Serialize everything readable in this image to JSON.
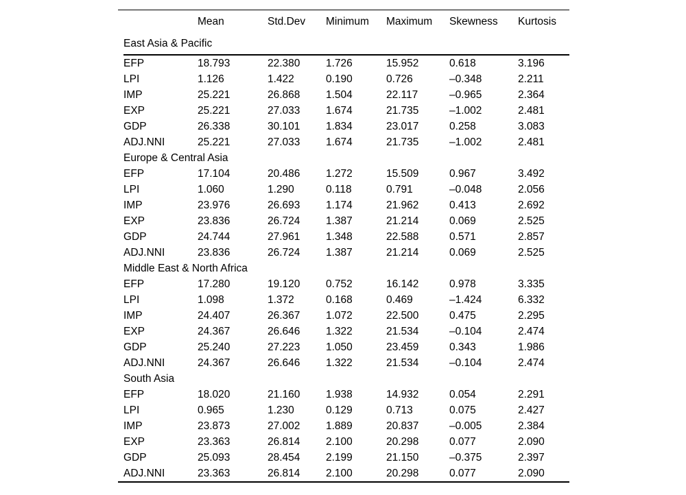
{
  "table": {
    "columns": [
      "",
      "Mean",
      "Std.Dev",
      "Minimum",
      "Maximum",
      "Skewness",
      "Kurtosis"
    ],
    "sections": [
      {
        "label": "East Asia & Pacific",
        "rows": [
          [
            "EFP",
            "18.793",
            "22.380",
            "1.726",
            "15.952",
            "0.618",
            "3.196"
          ],
          [
            "LPI",
            "1.126",
            "1.422",
            "0.190",
            "0.726",
            "–0.348",
            "2.211"
          ],
          [
            "IMP",
            "25.221",
            "26.868",
            "1.504",
            "22.117",
            "–0.965",
            "2.364"
          ],
          [
            "EXP",
            "25.221",
            "27.033",
            "1.674",
            "21.735",
            "–1.002",
            "2.481"
          ],
          [
            "GDP",
            "26.338",
            "30.101",
            "1.834",
            "23.017",
            "0.258",
            "3.083"
          ],
          [
            "ADJ.NNI",
            "25.221",
            "27.033",
            "1.674",
            "21.735",
            "–1.002",
            "2.481"
          ]
        ]
      },
      {
        "label": "Europe & Central Asia",
        "rows": [
          [
            "EFP",
            "17.104",
            "20.486",
            "1.272",
            "15.509",
            "0.967",
            "3.492"
          ],
          [
            "LPI",
            "1.060",
            "1.290",
            "0.118",
            "0.791",
            "–0.048",
            "2.056"
          ],
          [
            "IMP",
            "23.976",
            "26.693",
            "1.174",
            "21.962",
            "0.413",
            "2.692"
          ],
          [
            "EXP",
            "23.836",
            "26.724",
            "1.387",
            "21.214",
            "0.069",
            "2.525"
          ],
          [
            "GDP",
            "24.744",
            "27.961",
            "1.348",
            "22.588",
            "0.571",
            "2.857"
          ],
          [
            "ADJ.NNI",
            "23.836",
            "26.724",
            "1.387",
            "21.214",
            "0.069",
            "2.525"
          ]
        ]
      },
      {
        "label": "Middle East & North Africa",
        "rows": [
          [
            "EFP",
            "17.280",
            "19.120",
            "0.752",
            "16.142",
            "0.978",
            "3.335"
          ],
          [
            "LPI",
            "1.098",
            "1.372",
            "0.168",
            "0.469",
            "–1.424",
            "6.332"
          ],
          [
            "IMP",
            "24.407",
            "26.367",
            "1.072",
            "22.500",
            "0.475",
            "2.295"
          ],
          [
            "EXP",
            "24.367",
            "26.646",
            "1.322",
            "21.534",
            "–0.104",
            "2.474"
          ],
          [
            "GDP",
            "25.240",
            "27.223",
            "1.050",
            "23.459",
            "0.343",
            "1.986"
          ],
          [
            "ADJ.NNI",
            "24.367",
            "26.646",
            "1.322",
            "21.534",
            "–0.104",
            "2.474"
          ]
        ]
      },
      {
        "label": "South Asia",
        "rows": [
          [
            "EFP",
            "18.020",
            "21.160",
            "1.938",
            "14.932",
            "0.054",
            "2.291"
          ],
          [
            "LPI",
            "0.965",
            "1.230",
            "0.129",
            "0.713",
            "0.075",
            "2.427"
          ],
          [
            "IMP",
            "23.873",
            "27.002",
            "1.889",
            "20.837",
            "–0.005",
            "2.384"
          ],
          [
            "EXP",
            "23.363",
            "26.814",
            "2.100",
            "20.298",
            "0.077",
            "2.090"
          ],
          [
            "GDP",
            "25.093",
            "28.454",
            "2.199",
            "21.150",
            "–0.375",
            "2.397"
          ],
          [
            "ADJ.NNI",
            "23.363",
            "26.814",
            "2.100",
            "20.298",
            "0.077",
            "2.090"
          ]
        ]
      }
    ]
  }
}
